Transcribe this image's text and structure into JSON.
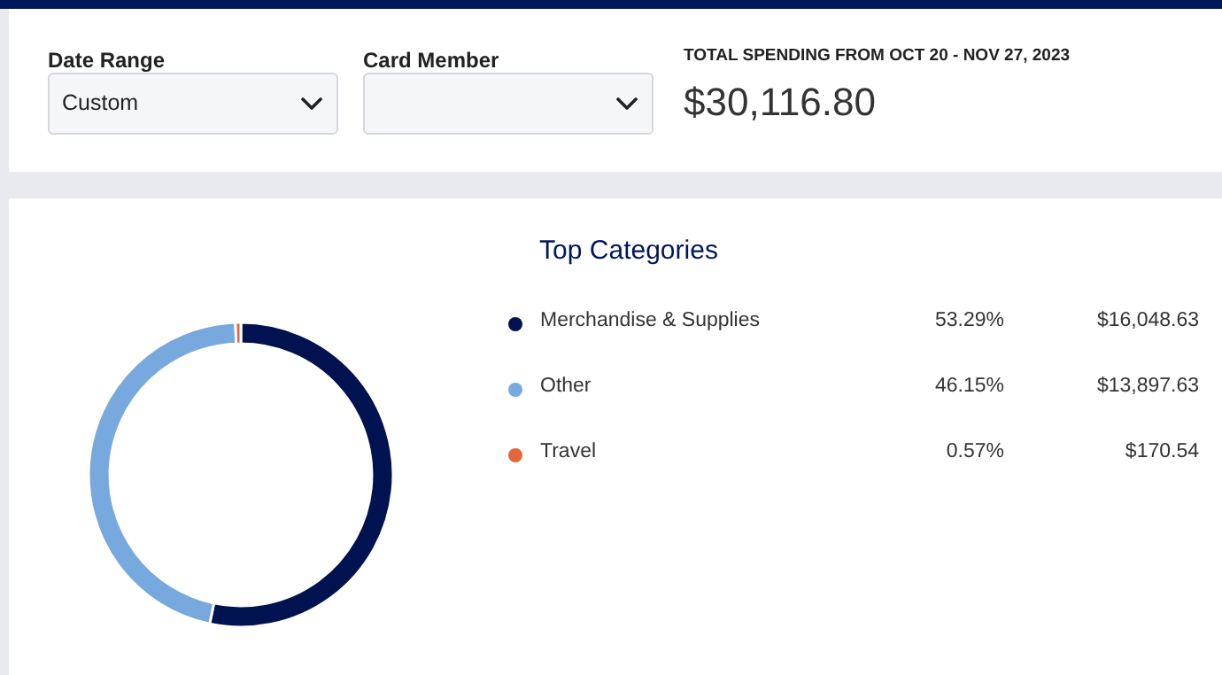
{
  "chart_data": {
    "type": "donut",
    "title": "Top Categories",
    "subtitle": "TOTAL SPENDING FROM OCT 20 - NOV 27, 2023",
    "annotations": [
      "Date Range",
      "Custom",
      "Card Member",
      "$30,116.80",
      "53.29%",
      "46.15%",
      "0.57%"
    ],
    "categories": [
      "Merchandise & Supplies",
      "Other",
      "Travel"
    ],
    "values": [
      16048.63,
      13897.63,
      170.54
    ],
    "value_labels": [
      "$16,048.63",
      "$13,897.63",
      "$170.54"
    ],
    "colors": [
      "#00124f",
      "#77a8de",
      "#e0683a"
    ],
    "legend": "right"
  }
}
